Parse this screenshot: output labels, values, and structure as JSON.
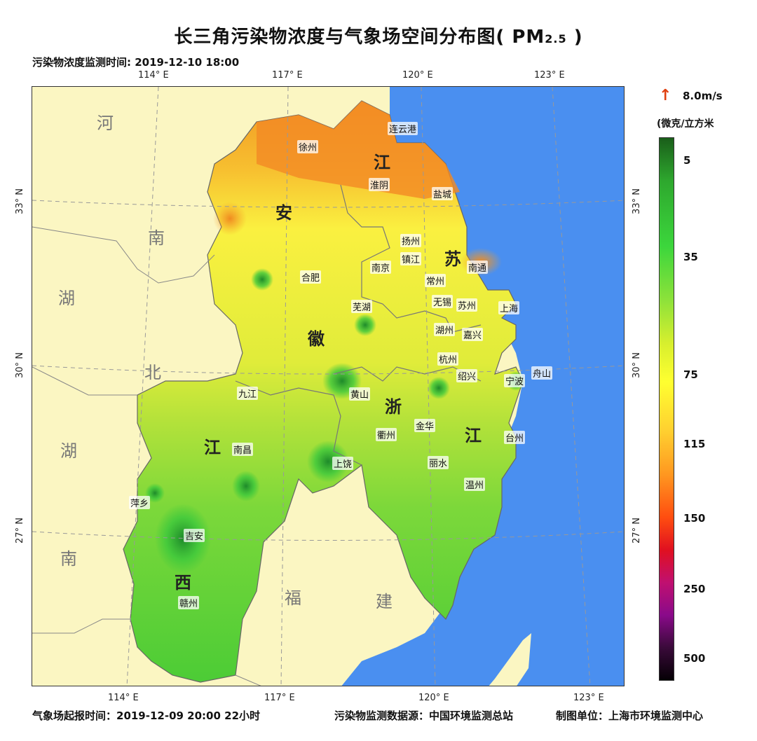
{
  "title": {
    "main": "长三角污染物浓度与气象场空间分布图( PM",
    "sub": "2.5",
    "close": " )"
  },
  "monitor_time": "污染物浓度监测时间: 2019-12-10 18:00",
  "forecast_time": "气象场起报时间：2019-12-09 20:00 22小时",
  "data_source": "污染物监测数据源：中国环境监测总站",
  "producer": "制图单位：上海市环境监测中心",
  "ticks": {
    "top": [
      "114° E",
      "117° E",
      "120° E",
      "123° E"
    ],
    "bottom": [
      "114° E",
      "117° E",
      "120° E",
      "123° E"
    ],
    "left": [
      "33° N",
      "30° N",
      "27° N"
    ],
    "right": [
      "33° N",
      "30° N",
      "27° N"
    ]
  },
  "provinces_outside": [
    "河",
    "南",
    "湖",
    "北",
    "湖",
    "南",
    "福",
    "建"
  ],
  "provinces_inside": [
    "江",
    "苏",
    "安",
    "徽",
    "浙",
    "江",
    "江",
    "西"
  ],
  "cities": [
    "连云港",
    "徐州",
    "淮阴",
    "盐城",
    "扬州",
    "镇江",
    "南京",
    "南通",
    "合肥",
    "常州",
    "无锡",
    "苏州",
    "上海",
    "芜湖",
    "湖州",
    "嘉兴",
    "杭州",
    "绍兴",
    "宁波",
    "舟山",
    "九江",
    "黄山",
    "金华",
    "衢州",
    "台州",
    "南昌",
    "上饶",
    "丽水",
    "温州",
    "萍乡",
    "吉安",
    "赣州"
  ],
  "legend": {
    "arrow_icon": "wind-arrow-icon",
    "speed": "8.0m/s",
    "unit": "(微克/立方米",
    "labels": [
      "5",
      "35",
      "75",
      "115",
      "150",
      "250",
      "500"
    ]
  }
}
